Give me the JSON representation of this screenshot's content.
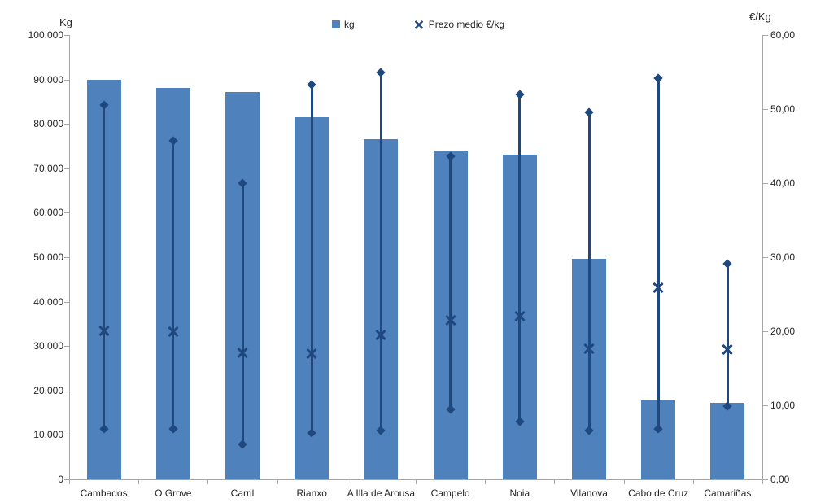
{
  "chart_data": {
    "type": "bar",
    "title": "",
    "categories": [
      "Cambados",
      "O Grove",
      "Carril",
      "Rianxo",
      "A Illa de Arousa",
      "Campelo",
      "Noia",
      "Vilanova",
      "Cabo de Cruz",
      "Camariñas"
    ],
    "series": [
      {
        "name": "kg",
        "type": "bar",
        "axis": "left",
        "color": "#4F81BD",
        "values": [
          90000,
          88100,
          87100,
          81500,
          76500,
          74000,
          73100,
          49600,
          17800,
          17200
        ]
      },
      {
        "name": "Prezo medio €/kg",
        "type": "scatter-x",
        "axis": "right",
        "color": "#1F497E",
        "values": [
          20.1,
          20.0,
          17.1,
          17.0,
          19.5,
          21.5,
          22.0,
          17.6,
          25.9,
          17.5
        ]
      }
    ],
    "price_range": {
      "name": "hi-lo line",
      "axis": "right",
      "color": "#1F497E",
      "high": [
        50.5,
        45.7,
        40.0,
        53.3,
        54.9,
        43.6,
        52.0,
        49.6,
        54.2,
        29.1
      ],
      "low": [
        6.8,
        6.8,
        4.7,
        6.3,
        6.6,
        9.5,
        7.8,
        6.6,
        6.8,
        9.9
      ]
    },
    "left_axis": {
      "title": "Kg",
      "min": 0,
      "max": 100000,
      "ticks": [
        {
          "value": 0,
          "label": "0"
        },
        {
          "value": 10000,
          "label": "10.000"
        },
        {
          "value": 20000,
          "label": "20.000"
        },
        {
          "value": 30000,
          "label": "30.000"
        },
        {
          "value": 40000,
          "label": "40.000"
        },
        {
          "value": 50000,
          "label": "50.000"
        },
        {
          "value": 60000,
          "label": "60.000"
        },
        {
          "value": 70000,
          "label": "70.000"
        },
        {
          "value": 80000,
          "label": "80.000"
        },
        {
          "value": 90000,
          "label": "90.000"
        },
        {
          "value": 100000,
          "label": "100.000"
        }
      ]
    },
    "right_axis": {
      "title": "€/Kg",
      "min": 0,
      "max": 60,
      "ticks": [
        {
          "value": 0,
          "label": "0,00"
        },
        {
          "value": 10,
          "label": "10,00"
        },
        {
          "value": 20,
          "label": "20,00"
        },
        {
          "value": 30,
          "label": "30,00"
        },
        {
          "value": 40,
          "label": "40,00"
        },
        {
          "value": 50,
          "label": "50,00"
        },
        {
          "value": 60,
          "label": "60,00"
        }
      ]
    },
    "legend_items": [
      {
        "label": "kg",
        "marker": "square",
        "color": "#4F81BD"
      },
      {
        "label": "Prezo medio €/kg",
        "marker": "x",
        "color": "#1F497E"
      }
    ],
    "grid": "off",
    "legend_position": "top-center"
  }
}
